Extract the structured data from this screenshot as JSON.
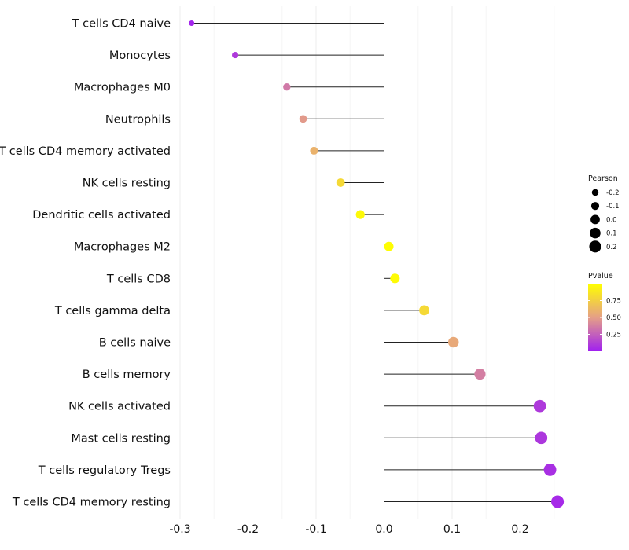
{
  "chart_data": {
    "type": "lollipop",
    "orientation": "horizontal",
    "xlim": [
      -0.3,
      0.25
    ],
    "x_ticks": [
      -0.3,
      -0.2,
      -0.1,
      0.0,
      0.1,
      0.2
    ],
    "x_tick_labels": [
      "-0.3",
      "-0.2",
      "-0.1",
      "0.0",
      "0.1",
      "0.2"
    ],
    "grid": "vertical-major-and-minor",
    "categories": [
      "T cells CD4 naive",
      "Monocytes",
      "Macrophages M0",
      "Neutrophils",
      "T cells CD4 memory activated",
      "NK cells resting",
      "Dendritic cells activated",
      "Macrophages M2",
      "T cells CD8",
      "T cells gamma delta",
      "B cells naive",
      "B cells memory",
      "NK cells activated",
      "Mast cells resting",
      "T cells regulatory  Tregs",
      "T cells CD4 memory resting"
    ],
    "pearson": [
      -0.283,
      -0.219,
      -0.143,
      -0.119,
      -0.103,
      -0.064,
      -0.035,
      0.007,
      0.016,
      0.059,
      0.102,
      0.141,
      0.229,
      0.231,
      0.244,
      0.255
    ],
    "pvalue": [
      0.02,
      0.1,
      0.35,
      0.48,
      0.6,
      0.8,
      0.97,
      0.99,
      0.98,
      0.8,
      0.55,
      0.37,
      0.1,
      0.09,
      0.06,
      0.04
    ],
    "size_legend": {
      "title": "Pearson",
      "values": [
        -0.2,
        -0.1,
        0.0,
        0.1,
        0.2
      ],
      "labels": [
        "-0.2",
        "-0.1",
        "0.0",
        "0.1",
        "0.2"
      ]
    },
    "color_legend": {
      "title": "Pvalue",
      "ticks": [
        0.25,
        0.5,
        0.75
      ],
      "tick_labels": [
        "0.25",
        "0.50",
        "0.75"
      ],
      "range": [
        0.0,
        1.0
      ],
      "low_color": "#a020f0",
      "mid_color": "#e59f87",
      "high_color": "#ffff00"
    },
    "legend_placement": "right"
  }
}
